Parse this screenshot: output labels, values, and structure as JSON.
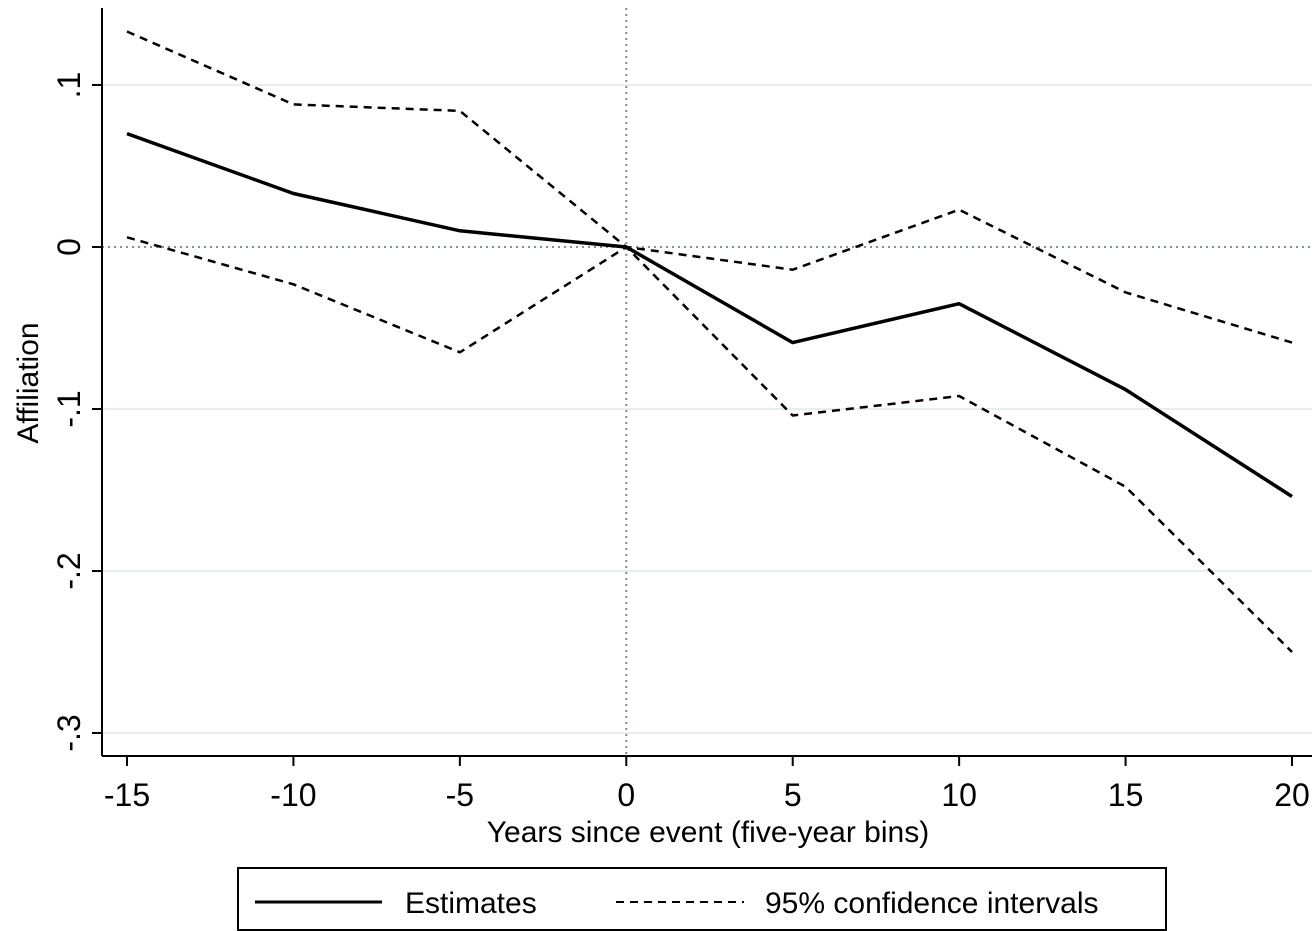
{
  "chart_data": {
    "type": "line",
    "xlabel": "Years since event (five-year bins)",
    "ylabel": "Affiliation",
    "x": [
      -15,
      -10,
      -5,
      0,
      5,
      10,
      15,
      20
    ],
    "xticks": [
      "-15",
      "-10",
      "-5",
      "0",
      "5",
      "10",
      "15",
      "20"
    ],
    "yticks": [
      {
        "value": 0.1,
        "label": ".1"
      },
      {
        "value": 0,
        "label": "0"
      },
      {
        "value": -0.1,
        "label": "-.1"
      },
      {
        "value": -0.2,
        "label": "-.2"
      },
      {
        "value": -0.3,
        "label": "-.3"
      }
    ],
    "xlim": [
      -15,
      20
    ],
    "ylim": [
      -0.3,
      0.1
    ],
    "grid": "horizontal",
    "reference_lines": {
      "x": 0,
      "y": 0
    },
    "series": [
      {
        "name": "Estimates",
        "style": "solid",
        "values": [
          0.07,
          0.033,
          0.01,
          0.0,
          -0.059,
          -0.035,
          -0.088,
          -0.154
        ]
      },
      {
        "style": "dashed",
        "values": [
          0.133,
          0.088,
          0.084,
          0.0,
          -0.014,
          0.023,
          -0.028,
          -0.059
        ]
      },
      {
        "style": "dashed",
        "values": [
          0.006,
          -0.023,
          -0.065,
          0.0,
          -0.104,
          -0.092,
          -0.148,
          -0.25
        ]
      }
    ],
    "legend": {
      "position": "bottom",
      "entries": [
        {
          "label": "Estimates",
          "style": "solid"
        },
        {
          "label": "95% confidence intervals",
          "style": "dashed"
        }
      ]
    },
    "colors": {
      "line": "#000000",
      "grid": "#e6eef0",
      "refline": "#7a9a7a"
    }
  }
}
